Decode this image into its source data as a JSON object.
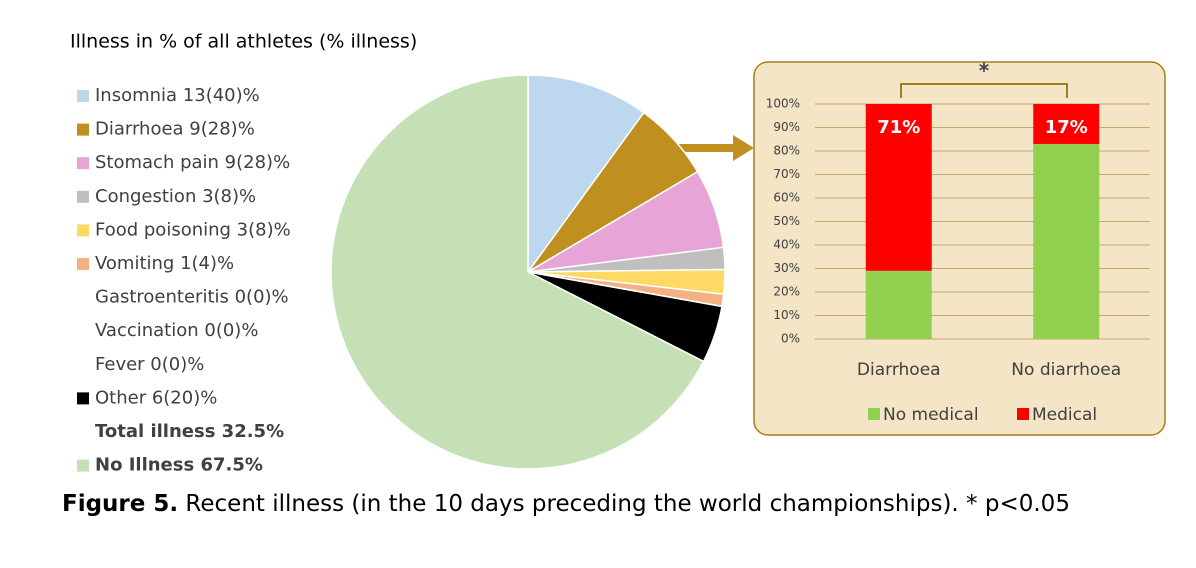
{
  "chart_data": [
    {
      "type": "pie",
      "title": "Illness in % of all athletes (% illness)",
      "categories": [
        "Insomnia 13(40)%",
        "Diarrhoea 9(28)%",
        "Stomach pain 9(28)%",
        "Congestion 3(8)%",
        "Food poisoning 3(8)%",
        "Vomiting 1(4)%",
        "Gastroenteritis 0(0)%",
        "Vaccination 0(0)%",
        "Fever 0(0)%",
        "Other 6(20)%",
        "Total illness 32.5%",
        "No Illness 67.5%"
      ],
      "values": [
        10,
        6.5,
        6.5,
        1.8,
        2,
        1,
        0,
        0,
        0,
        4.7,
        null,
        67.5
      ],
      "colors": [
        "#bdd7ee",
        "#bf9020",
        "#e6a5d6",
        "#bfbfbf",
        "#ffd966",
        "#f4b183",
        null,
        null,
        null,
        "#000000",
        null,
        "#c5e0b4"
      ]
    },
    {
      "type": "bar",
      "stacked": true,
      "annotation": "*",
      "categories": [
        "Diarrhoea",
        "No diarrhoea"
      ],
      "series": [
        {
          "name": "No medical",
          "color": "#92d050",
          "values": [
            29,
            83
          ]
        },
        {
          "name": "Medical",
          "color": "#ff0000",
          "values": [
            71,
            17
          ],
          "value_labels": [
            "71%",
            "17%"
          ]
        }
      ],
      "ylim": [
        0,
        100
      ],
      "yticks": [
        {
          "value": 0,
          "label": "0%"
        },
        {
          "value": 10,
          "label": "10%"
        },
        {
          "value": 20,
          "label": "20%"
        },
        {
          "value": 30,
          "label": "30%"
        },
        {
          "value": 40,
          "label": "40%"
        },
        {
          "value": 50,
          "label": "50%"
        },
        {
          "value": 60,
          "label": "60%"
        },
        {
          "value": 70,
          "label": "70%"
        },
        {
          "value": 80,
          "label": "80%"
        },
        {
          "value": 90,
          "label": "90%"
        },
        {
          "value": 100,
          "label": "100%"
        }
      ],
      "grid": true
    }
  ],
  "caption": {
    "label": "Figure 5.",
    "text": " Recent illness (in the 10 days preceding the world championships). * p<0.05"
  }
}
